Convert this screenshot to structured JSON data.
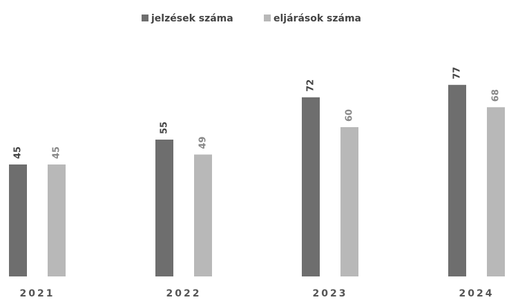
{
  "chart_data": {
    "type": "bar",
    "categories": [
      "2021",
      "2022",
      "2023",
      "2024"
    ],
    "series": [
      {
        "name": "jelzések száma",
        "color": "#6e6e6e",
        "values": [
          45,
          55,
          72,
          77
        ]
      },
      {
        "name": "eljárások száma",
        "color": "#b8b8b8",
        "values": [
          45,
          49,
          60,
          68
        ]
      }
    ]
  }
}
